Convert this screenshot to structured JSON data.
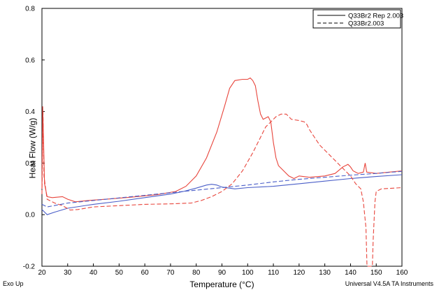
{
  "chart_data": {
    "type": "line",
    "xlabel": "Temperature (°C)",
    "ylabel": "Heat Flow (W/g)",
    "xlim": [
      20,
      160
    ],
    "ylim": [
      -0.2,
      0.8
    ],
    "x_ticks": [
      20,
      30,
      40,
      50,
      60,
      70,
      80,
      90,
      100,
      110,
      120,
      130,
      140,
      150,
      160
    ],
    "y_ticks": [
      -0.2,
      0.0,
      0.2,
      0.4,
      0.6,
      0.8
    ],
    "y_tick_labels": [
      "-0.2",
      "0.0",
      "0.2",
      "0.4",
      "0.6",
      "0.8"
    ],
    "grid": false,
    "legend_position": "top-right",
    "legend": [
      {
        "label": "Q33Br2 Rep 2.003",
        "dash": "solid"
      },
      {
        "label": "Q33Br2.003",
        "dash": "dashed"
      }
    ],
    "series": [
      {
        "name": "Q33Br2 Rep 2.003",
        "dash": "solid",
        "color": "#e8453c",
        "points": [
          [
            20,
            0.1
          ],
          [
            20.3,
            0.42
          ],
          [
            20.6,
            0.3
          ],
          [
            21,
            0.12
          ],
          [
            22,
            0.07
          ],
          [
            24,
            0.066
          ],
          [
            28,
            0.07
          ],
          [
            30,
            0.06
          ],
          [
            33,
            0.05
          ],
          [
            38,
            0.055
          ],
          [
            45,
            0.06
          ],
          [
            55,
            0.068
          ],
          [
            65,
            0.078
          ],
          [
            72,
            0.09
          ],
          [
            76,
            0.11
          ],
          [
            80,
            0.15
          ],
          [
            84,
            0.22
          ],
          [
            88,
            0.32
          ],
          [
            91,
            0.42
          ],
          [
            93,
            0.49
          ],
          [
            95,
            0.52
          ],
          [
            98,
            0.525
          ],
          [
            100,
            0.525
          ],
          [
            101,
            0.53
          ],
          [
            102,
            0.52
          ],
          [
            103,
            0.5
          ],
          [
            104,
            0.44
          ],
          [
            105,
            0.39
          ],
          [
            106,
            0.37
          ],
          [
            108,
            0.38
          ],
          [
            109,
            0.36
          ],
          [
            110,
            0.28
          ],
          [
            111,
            0.22
          ],
          [
            112,
            0.19
          ],
          [
            114,
            0.17
          ],
          [
            116,
            0.15
          ],
          [
            118,
            0.14
          ],
          [
            120,
            0.15
          ],
          [
            124,
            0.145
          ],
          [
            130,
            0.15
          ],
          [
            134,
            0.16
          ],
          [
            137,
            0.185
          ],
          [
            139,
            0.195
          ],
          [
            140,
            0.185
          ],
          [
            141,
            0.17
          ],
          [
            143,
            0.16
          ],
          [
            145,
            0.165
          ],
          [
            145.7,
            0.2
          ],
          [
            146.3,
            0.165
          ],
          [
            150,
            0.16
          ],
          [
            155,
            0.165
          ],
          [
            160,
            0.17
          ]
        ]
      },
      {
        "name": "Q33Br2 Rep 2.003 (blue)",
        "dash": "solid",
        "color": "#4a5ec8",
        "points": [
          [
            20,
            0.02
          ],
          [
            21,
            0.01
          ],
          [
            22,
            0.0
          ],
          [
            25,
            0.01
          ],
          [
            30,
            0.025
          ],
          [
            40,
            0.04
          ],
          [
            50,
            0.052
          ],
          [
            60,
            0.066
          ],
          [
            70,
            0.08
          ],
          [
            75,
            0.09
          ],
          [
            80,
            0.103
          ],
          [
            84,
            0.115
          ],
          [
            86,
            0.118
          ],
          [
            88,
            0.115
          ],
          [
            90,
            0.107
          ],
          [
            95,
            0.1
          ],
          [
            100,
            0.105
          ],
          [
            110,
            0.11
          ],
          [
            120,
            0.12
          ],
          [
            130,
            0.13
          ],
          [
            140,
            0.14
          ],
          [
            150,
            0.148
          ],
          [
            160,
            0.155
          ]
        ]
      },
      {
        "name": "Q33Br2.003",
        "dash": "dashed",
        "color": "#e8453c",
        "points": [
          [
            20,
            0.08
          ],
          [
            20.4,
            0.4
          ],
          [
            20.8,
            0.15
          ],
          [
            22,
            0.06
          ],
          [
            25,
            0.045
          ],
          [
            28,
            0.035
          ],
          [
            31,
            0.018
          ],
          [
            34,
            0.02
          ],
          [
            40,
            0.03
          ],
          [
            50,
            0.035
          ],
          [
            60,
            0.04
          ],
          [
            70,
            0.042
          ],
          [
            78,
            0.045
          ],
          [
            82,
            0.055
          ],
          [
            86,
            0.07
          ],
          [
            90,
            0.09
          ],
          [
            94,
            0.12
          ],
          [
            98,
            0.17
          ],
          [
            102,
            0.24
          ],
          [
            105,
            0.3
          ],
          [
            107,
            0.34
          ],
          [
            109,
            0.36
          ],
          [
            111,
            0.38
          ],
          [
            113,
            0.39
          ],
          [
            115,
            0.39
          ],
          [
            117,
            0.37
          ],
          [
            120,
            0.365
          ],
          [
            122,
            0.36
          ],
          [
            123,
            0.35
          ],
          [
            124,
            0.33
          ],
          [
            126,
            0.3
          ],
          [
            128,
            0.27
          ],
          [
            130,
            0.25
          ],
          [
            132,
            0.23
          ],
          [
            134,
            0.21
          ],
          [
            136,
            0.19
          ],
          [
            138,
            0.17
          ],
          [
            140,
            0.15
          ],
          [
            142,
            0.12
          ],
          [
            144,
            0.1
          ],
          [
            145,
            0.05
          ],
          [
            146,
            -0.05
          ],
          [
            146.4,
            -0.2
          ],
          [
            148.5,
            -0.2
          ],
          [
            148.8,
            -0.1
          ],
          [
            149.5,
            0.05
          ],
          [
            150,
            0.09
          ],
          [
            152,
            0.1
          ],
          [
            160,
            0.105
          ]
        ]
      },
      {
        "name": "Q33Br2.003 (blue)",
        "dash": "dashed",
        "color": "#4a5ec8",
        "points": [
          [
            20,
            0.04
          ],
          [
            22,
            0.03
          ],
          [
            30,
            0.045
          ],
          [
            40,
            0.055
          ],
          [
            50,
            0.065
          ],
          [
            60,
            0.075
          ],
          [
            70,
            0.085
          ],
          [
            80,
            0.095
          ],
          [
            90,
            0.105
          ],
          [
            100,
            0.115
          ],
          [
            110,
            0.127
          ],
          [
            120,
            0.137
          ],
          [
            130,
            0.145
          ],
          [
            140,
            0.153
          ],
          [
            150,
            0.16
          ],
          [
            160,
            0.168
          ]
        ]
      }
    ]
  },
  "footer": {
    "left": "Exo Up",
    "right": "Universal V4.5A TA Instruments"
  }
}
